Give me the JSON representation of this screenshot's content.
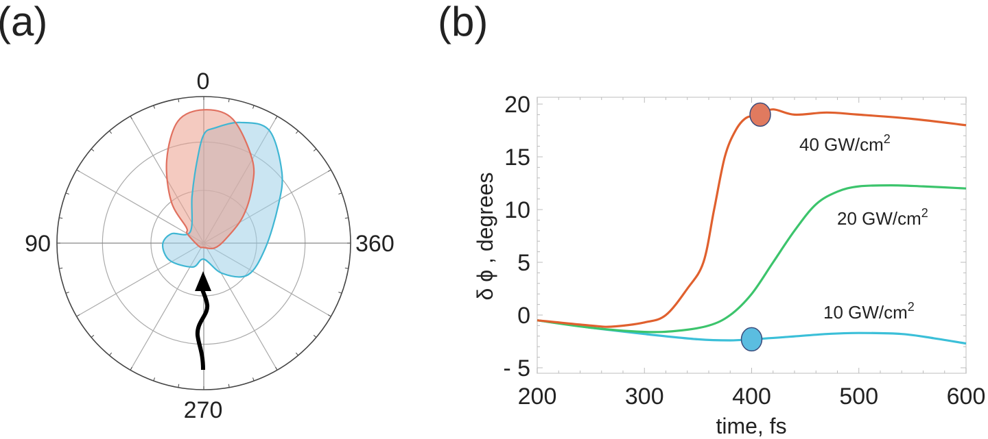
{
  "panels": {
    "a_label": "(a)",
    "b_label": "(b)"
  },
  "chart_data": [
    {
      "type": "polar",
      "panel": "(a)",
      "angle_labels": {
        "top": "0",
        "left": "90",
        "bottom": "270",
        "right": "360"
      },
      "grid": true,
      "spoke_step_deg": 30,
      "ring_fractions": [
        0.36,
        0.69,
        1.0
      ],
      "angle_convention": "degrees clockwise from top; r as fraction of outer ring",
      "series": [
        {
          "color": "#3fb6d3",
          "fill": "#9fd0e8",
          "points": [
            [
              0,
              0.74
            ],
            [
              5.6,
              0.79
            ],
            [
              16.8,
              0.86
            ],
            [
              30,
              0.89
            ],
            [
              47.6,
              0.72
            ],
            [
              63,
              0.57
            ],
            [
              95,
              0.42
            ],
            [
              126,
              0.37
            ],
            [
              149,
              0.24
            ],
            [
              180,
              0.11
            ],
            [
              205,
              0.18
            ],
            [
              243,
              0.26
            ],
            [
              268,
              0.28
            ],
            [
              286,
              0.23
            ],
            [
              310,
              0.12
            ],
            [
              346,
              0.33
            ],
            [
              355,
              0.55
            ]
          ]
        },
        {
          "color": "#e0705f",
          "fill": "#eb9f8c",
          "points": [
            [
              0,
              0.91
            ],
            [
              13,
              0.87
            ],
            [
              30,
              0.66
            ],
            [
              41,
              0.5
            ],
            [
              56,
              0.32
            ],
            [
              80,
              0.15
            ],
            [
              115,
              0.08
            ],
            [
              180,
              0.03
            ],
            [
              240,
              0.04
            ],
            [
              300,
              0.13
            ],
            [
              312,
              0.16
            ],
            [
              322,
              0.36
            ],
            [
              336,
              0.62
            ],
            [
              348,
              0.85
            ]
          ]
        }
      ],
      "annotation": "incident-wavy-arrow"
    },
    {
      "type": "line",
      "panel": "(b)",
      "xlabel": "time, fs",
      "ylabel": "δ ϕ , degrees",
      "xlim": [
        200,
        600
      ],
      "ylim": [
        -5,
        20
      ],
      "xticks": [
        "200",
        "300",
        "400",
        "500",
        "600"
      ],
      "yticks": [
        "- 5",
        "0",
        "5",
        "10",
        "15",
        "20"
      ],
      "grid": false,
      "series": [
        {
          "name": "40 GW/cm2",
          "label_main": "40 GW/cm",
          "label_sup": "2",
          "color": "#e0602e",
          "x": [
            200,
            250,
            270,
            300,
            320,
            340,
            355,
            365,
            375,
            385,
            395,
            408,
            420,
            440,
            470,
            500,
            550,
            600
          ],
          "y": [
            -0.5,
            -1.0,
            -1.1,
            -0.7,
            0,
            2.5,
            5,
            10,
            15,
            17.5,
            18.7,
            19,
            19.5,
            19,
            19.2,
            19,
            18.6,
            18
          ],
          "marker": {
            "x": 408,
            "y": 19,
            "fill": "#e07a5f"
          }
        },
        {
          "name": "20 GW/cm2",
          "label_main": "20 GW/cm",
          "label_sup": "2",
          "color": "#3cc46c",
          "x": [
            200,
            250,
            300,
            330,
            360,
            380,
            400,
            420,
            440,
            460,
            480,
            500,
            530,
            560,
            600
          ],
          "y": [
            -0.5,
            -1.2,
            -1.6,
            -1.5,
            -1.0,
            0,
            2,
            5,
            8,
            10.5,
            11.7,
            12.2,
            12.3,
            12.2,
            12
          ]
        },
        {
          "name": "10 GW/cm2",
          "label_main": "10 GW/cm",
          "label_sup": "2",
          "color": "#3bbfd8",
          "x": [
            200,
            250,
            300,
            350,
            380,
            400,
            430,
            470,
            500,
            540,
            570,
            600
          ],
          "y": [
            -0.5,
            -1.2,
            -1.8,
            -2.3,
            -2.4,
            -2.3,
            -2.1,
            -1.8,
            -1.7,
            -1.8,
            -2.2,
            -2.7
          ],
          "marker": {
            "x": 400,
            "y": -2.3,
            "fill": "#5bbde0"
          }
        }
      ]
    }
  ]
}
